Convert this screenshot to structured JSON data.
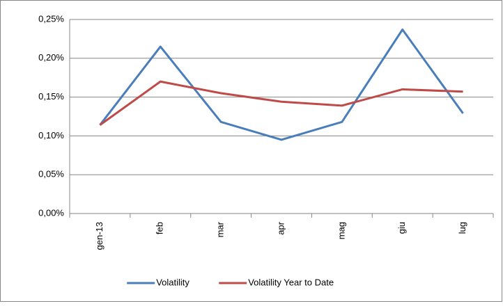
{
  "chart_data": {
    "type": "line",
    "categories": [
      "gen-13",
      "feb",
      "mar",
      "apr",
      "mag",
      "giu",
      "lug"
    ],
    "series": [
      {
        "name": "Volatility",
        "color": "#4a7ebb",
        "values": [
          0.114,
          0.215,
          0.118,
          0.095,
          0.118,
          0.237,
          0.129
        ]
      },
      {
        "name": "Volatility Year to Date",
        "color": "#be4b48",
        "values": [
          0.114,
          0.17,
          0.155,
          0.144,
          0.139,
          0.16,
          0.157
        ]
      }
    ],
    "ylim": [
      0,
      0.25
    ],
    "yticks": [
      {
        "value": 0,
        "label": "0,00%"
      },
      {
        "value": 0.05,
        "label": "0,05%"
      },
      {
        "value": 0.1,
        "label": "0,10%"
      },
      {
        "value": 0.15,
        "label": "0,15%"
      },
      {
        "value": 0.2,
        "label": "0,20%"
      },
      {
        "value": 0.25,
        "label": "0,25%"
      }
    ],
    "grid": true,
    "legend": "bottom"
  }
}
